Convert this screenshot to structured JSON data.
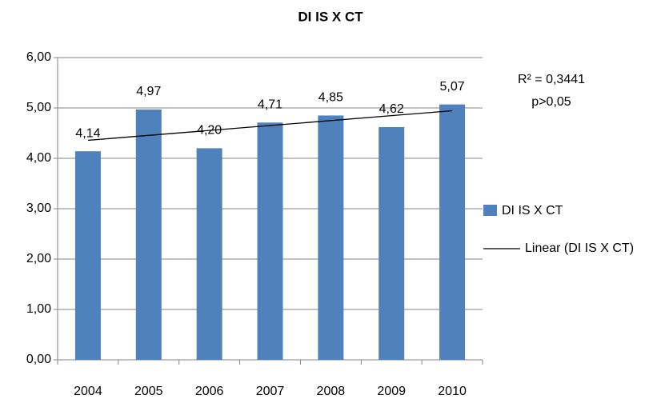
{
  "chart_data": {
    "type": "bar",
    "title": "DI IS X CT",
    "categories": [
      "2004",
      "2005",
      "2006",
      "2007",
      "2008",
      "2009",
      "2010"
    ],
    "series": [
      {
        "name": "DI IS X CT",
        "color": "#4f81bd",
        "values": [
          4.14,
          4.97,
          4.2,
          4.71,
          4.85,
          4.62,
          5.07
        ],
        "value_labels": [
          "4,14",
          "4,97",
          "4,20",
          "4,71",
          "4,85",
          "4,62",
          "5,07"
        ]
      }
    ],
    "trendline": {
      "name": "Linear (DI IS X CT)",
      "color": "#000000"
    },
    "annotations": [
      "R² = 0,3441",
      "p>0,05"
    ],
    "ylim": [
      0,
      6
    ],
    "yticks": [
      {
        "value": 0,
        "label": "0,00"
      },
      {
        "value": 1,
        "label": "1,00"
      },
      {
        "value": 2,
        "label": "2,00"
      },
      {
        "value": 3,
        "label": "3,00"
      },
      {
        "value": 4,
        "label": "4,00"
      },
      {
        "value": 5,
        "label": "5,00"
      },
      {
        "value": 6,
        "label": "6,00"
      }
    ],
    "grid": true,
    "legend": "right"
  }
}
